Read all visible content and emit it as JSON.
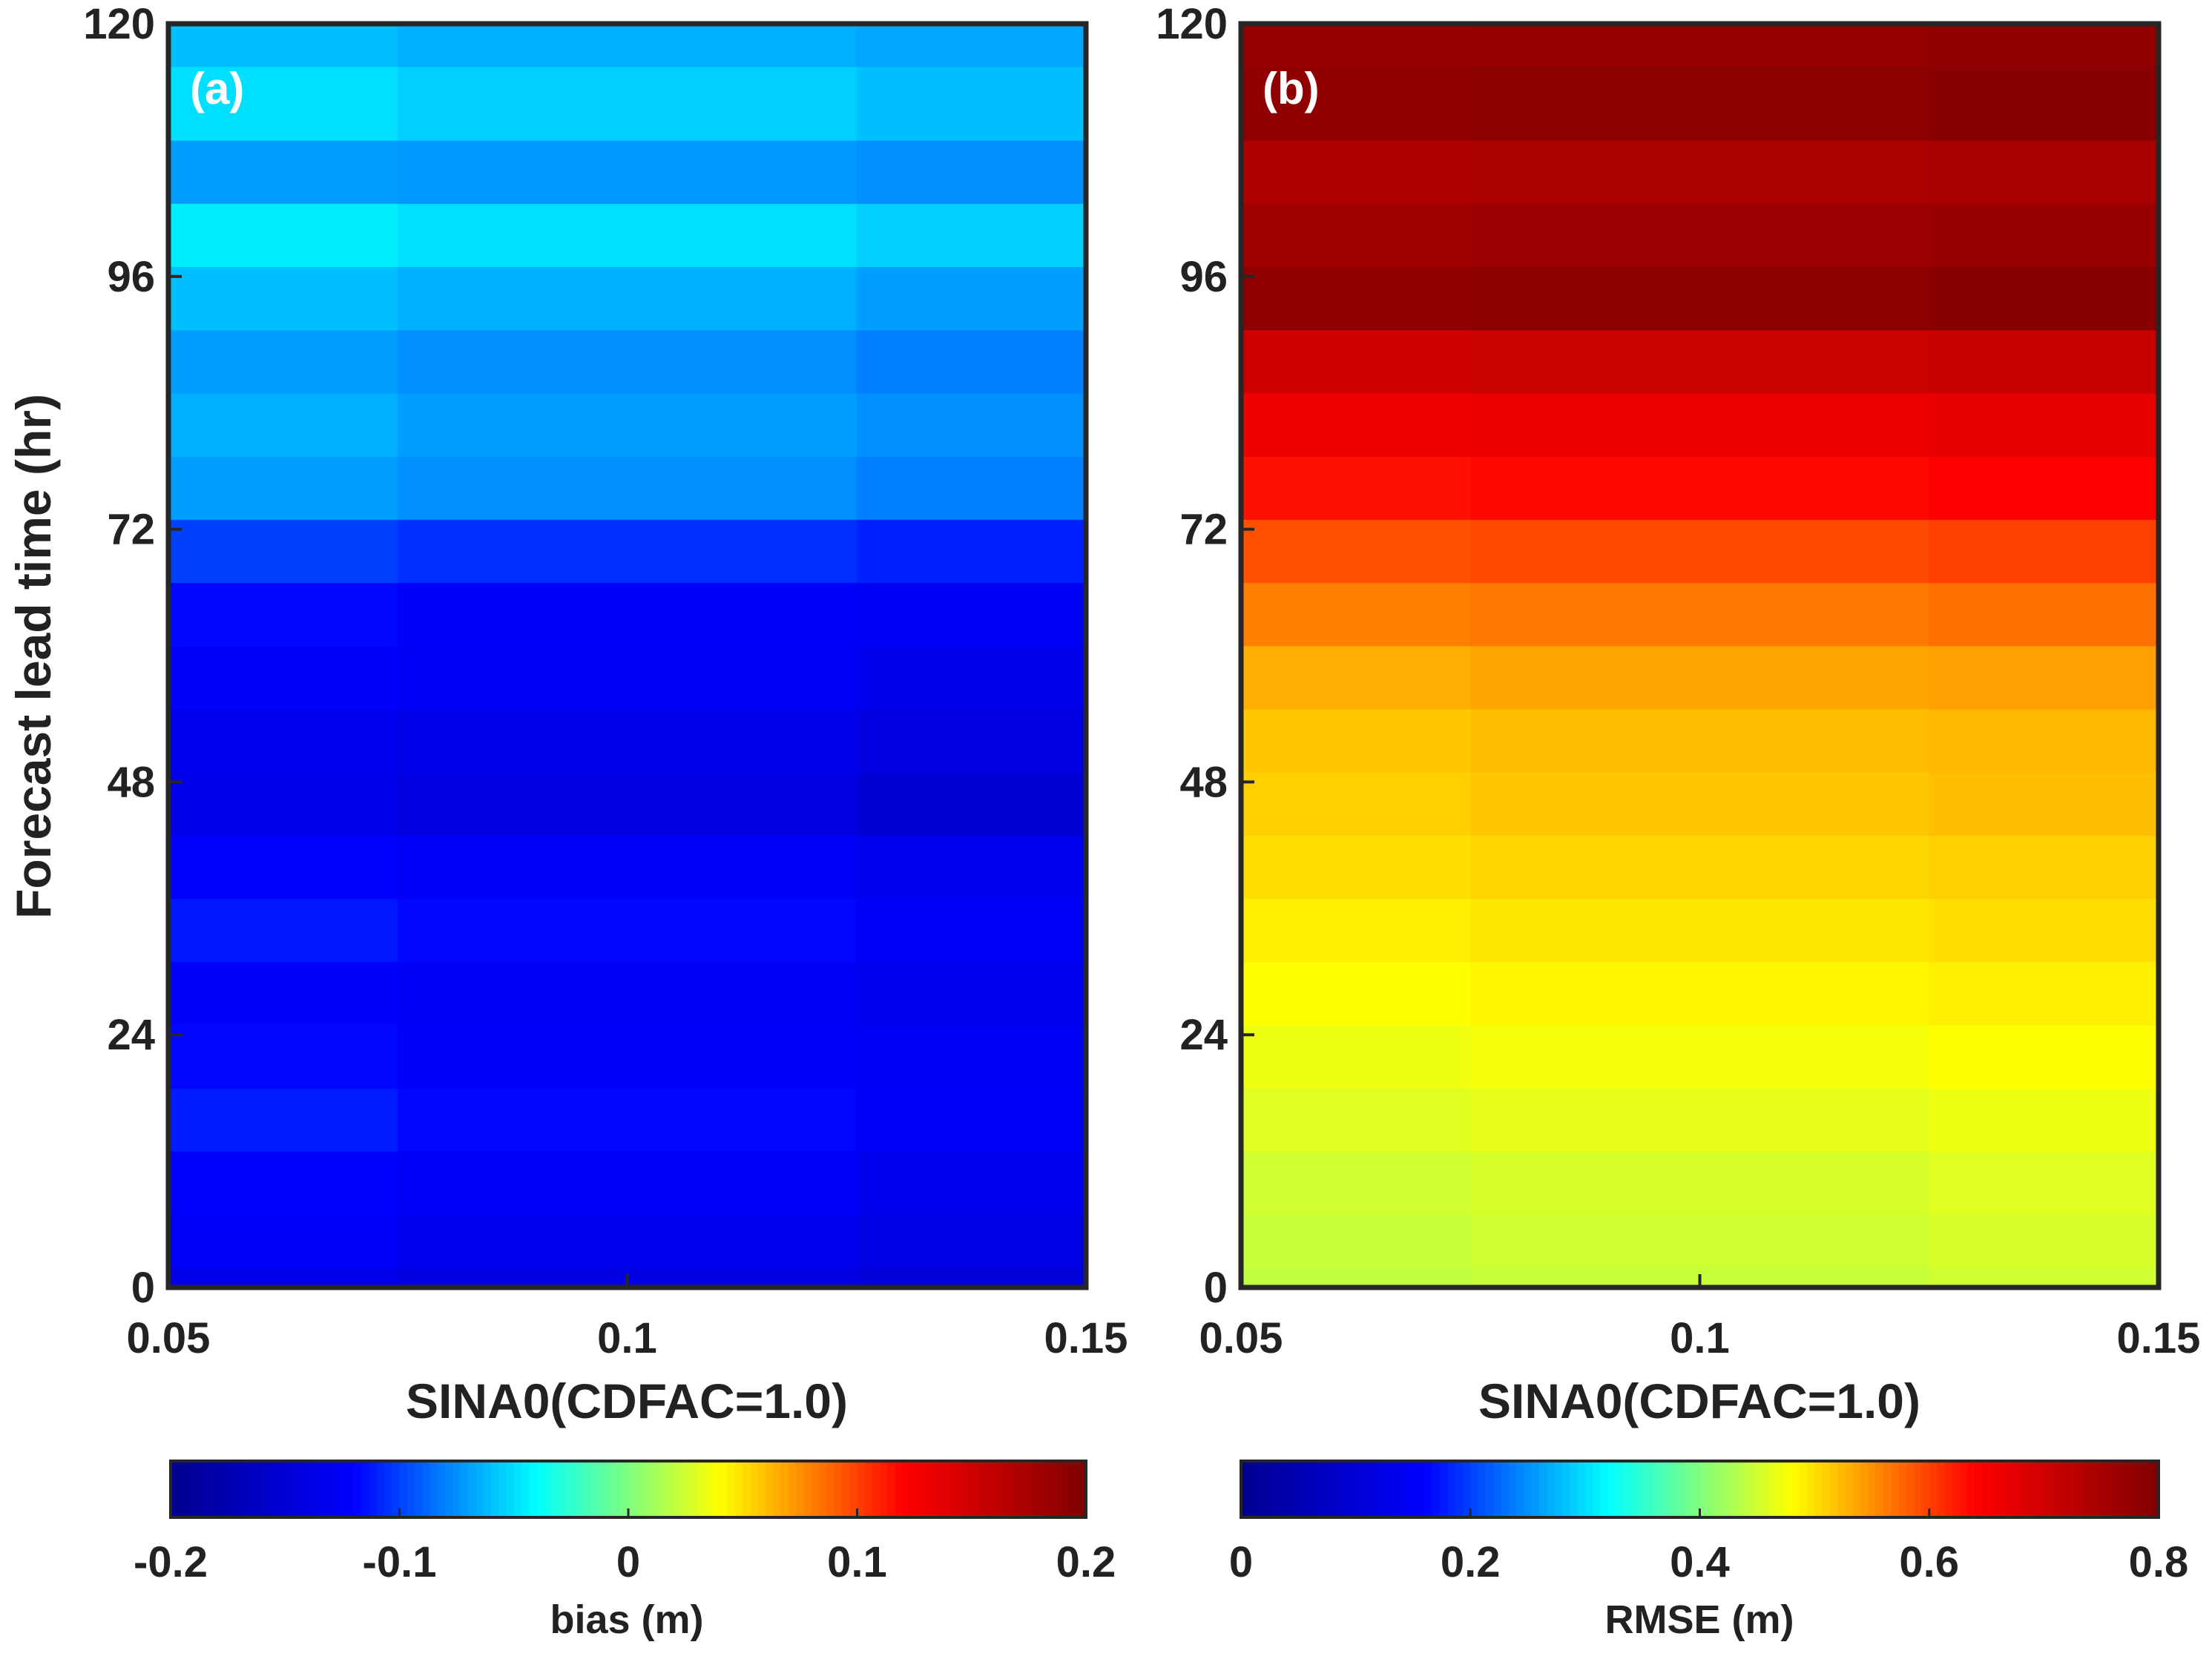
{
  "chart_data": [
    {
      "type": "heatmap",
      "panel_label": "(a)",
      "x": [
        0.05,
        0.1,
        0.15
      ],
      "xlim": [
        0.05,
        0.15
      ],
      "ylim": [
        0,
        120
      ],
      "xlabel": "SINA0(CDFAC=1.0)",
      "ylabel": "Forecast lead time (hr)",
      "x_tick_labels": [
        "0.05",
        "0.1",
        "0.15"
      ],
      "y_tick_labels": [
        "0",
        "24",
        "48",
        "72",
        "96",
        "120"
      ],
      "colorbar": {
        "label": "bias (m)",
        "range": [
          -0.2,
          0.2
        ],
        "tick_labels": [
          "-0.2",
          "-0.1",
          "0",
          "0.1",
          "0.2"
        ]
      },
      "lead_times": [
        0,
        4,
        10,
        16,
        22,
        28,
        34,
        40,
        46,
        52,
        58,
        64,
        70,
        76,
        82,
        88,
        94,
        100,
        106,
        112,
        120
      ],
      "values": [
        [
          -0.135,
          -0.14,
          -0.148
        ],
        [
          -0.125,
          -0.13,
          -0.138
        ],
        [
          -0.12,
          -0.125,
          -0.132
        ],
        [
          -0.112,
          -0.118,
          -0.125
        ],
        [
          -0.118,
          -0.123,
          -0.128
        ],
        [
          -0.122,
          -0.126,
          -0.132
        ],
        [
          -0.113,
          -0.118,
          -0.124
        ],
        [
          -0.12,
          -0.125,
          -0.13
        ],
        [
          -0.135,
          -0.14,
          -0.15
        ],
        [
          -0.13,
          -0.135,
          -0.142
        ],
        [
          -0.122,
          -0.127,
          -0.133
        ],
        [
          -0.118,
          -0.122,
          -0.128
        ],
        [
          -0.1,
          -0.105,
          -0.11
        ],
        [
          -0.07,
          -0.075,
          -0.08
        ],
        [
          -0.065,
          -0.07,
          -0.075
        ],
        [
          -0.07,
          -0.075,
          -0.08
        ],
        [
          -0.06,
          -0.065,
          -0.07
        ],
        [
          -0.045,
          -0.05,
          -0.055
        ],
        [
          -0.07,
          -0.072,
          -0.075
        ],
        [
          -0.05,
          -0.055,
          -0.06
        ],
        [
          -0.06,
          -0.065,
          -0.068
        ]
      ],
      "colormap": [
        "#00008f",
        "#0000ff",
        "#00ffff",
        "#ffff00",
        "#ff0000",
        "#800000"
      ]
    },
    {
      "type": "heatmap",
      "panel_label": "(b)",
      "x": [
        0.05,
        0.1,
        0.15
      ],
      "xlim": [
        0.05,
        0.15
      ],
      "ylim": [
        0,
        120
      ],
      "xlabel": "SINA0(CDFAC=1.0)",
      "ylabel": "",
      "x_tick_labels": [
        "0.05",
        "0.1",
        "0.15"
      ],
      "y_tick_labels": [
        "0",
        "24",
        "48",
        "72",
        "96",
        "120"
      ],
      "colorbar": {
        "label": "RMSE (m)",
        "range": [
          0,
          0.8
        ],
        "tick_labels": [
          "0",
          "0.2",
          "0.4",
          "0.6",
          "0.8"
        ]
      },
      "lead_times": [
        0,
        4,
        10,
        16,
        22,
        28,
        34,
        40,
        46,
        52,
        58,
        64,
        70,
        76,
        82,
        88,
        94,
        100,
        106,
        112,
        120
      ],
      "values": [
        [
          0.44,
          0.445,
          0.45
        ],
        [
          0.445,
          0.45,
          0.455
        ],
        [
          0.45,
          0.455,
          0.46
        ],
        [
          0.46,
          0.465,
          0.47
        ],
        [
          0.47,
          0.475,
          0.48
        ],
        [
          0.48,
          0.485,
          0.49
        ],
        [
          0.49,
          0.495,
          0.5
        ],
        [
          0.5,
          0.505,
          0.51
        ],
        [
          0.51,
          0.515,
          0.52
        ],
        [
          0.515,
          0.52,
          0.525
        ],
        [
          0.53,
          0.535,
          0.54
        ],
        [
          0.56,
          0.565,
          0.57
        ],
        [
          0.59,
          0.595,
          0.6
        ],
        [
          0.63,
          0.635,
          0.64
        ],
        [
          0.66,
          0.665,
          0.67
        ],
        [
          0.7,
          0.705,
          0.71
        ],
        [
          0.78,
          0.785,
          0.79
        ],
        [
          0.76,
          0.765,
          0.77
        ],
        [
          0.74,
          0.745,
          0.75
        ],
        [
          0.78,
          0.785,
          0.79
        ],
        [
          0.77,
          0.775,
          0.78
        ]
      ],
      "colormap": [
        "#00008f",
        "#0000ff",
        "#00ffff",
        "#ffff00",
        "#ff0000",
        "#800000"
      ]
    }
  ]
}
